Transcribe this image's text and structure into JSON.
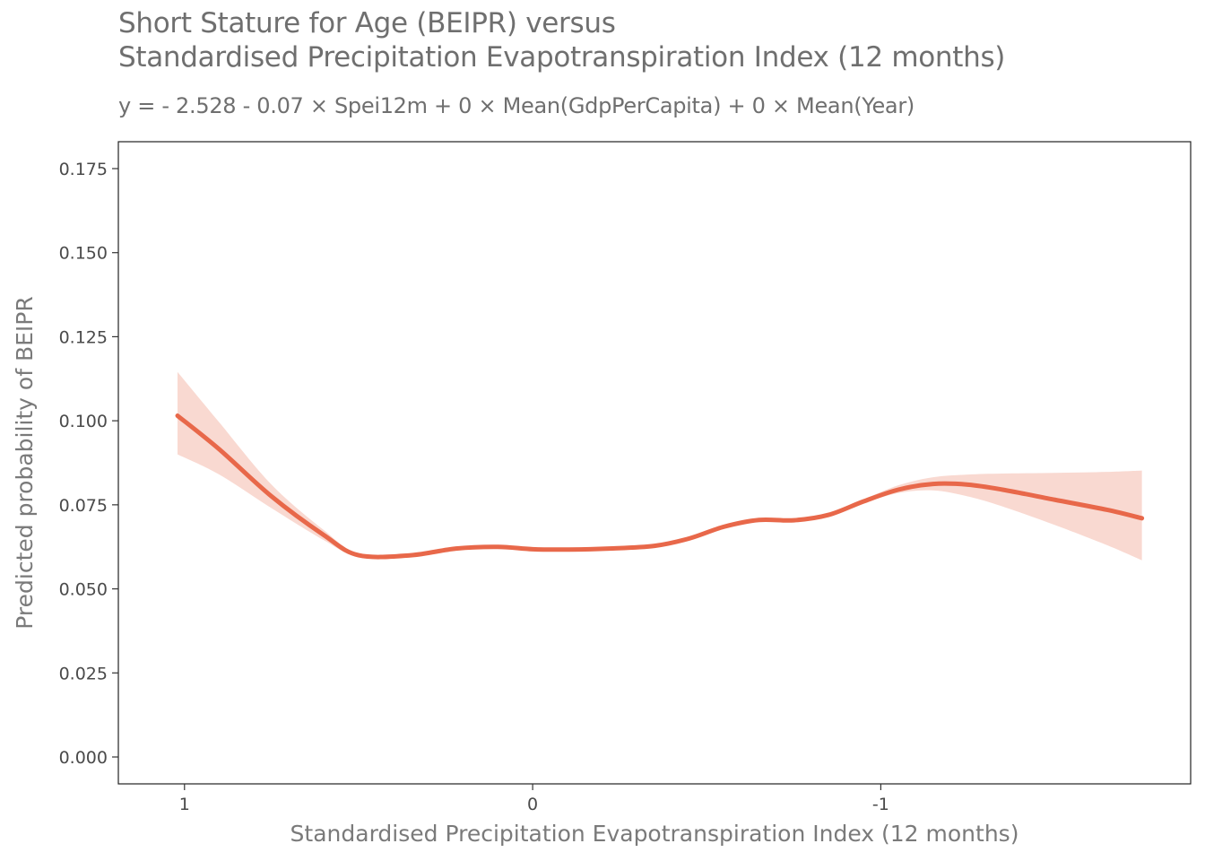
{
  "chart_data": {
    "type": "line",
    "title_lines": [
      "Short Stature for Age (BEIPR) versus",
      "Standardised Precipitation Evapotranspiration Index (12 months)"
    ],
    "subtitle": "y =  - 2.528 - 0.07 × Spei12m + 0 × Mean(GdpPerCapita) + 0 × Mean(Year)",
    "xlabel": "Standardised Precipitation Evapotranspiration Index (12 months)",
    "ylabel": "Predicted probability of BEIPR",
    "x_reversed": true,
    "xlim": [
      1.19,
      -1.89
    ],
    "ylim": [
      -0.008,
      0.183
    ],
    "x_ticks": [
      {
        "value": 1,
        "label": "1"
      },
      {
        "value": 0,
        "label": "0"
      },
      {
        "value": -1,
        "label": "-1"
      }
    ],
    "y_ticks": [
      {
        "value": 0.0,
        "label": "0.000"
      },
      {
        "value": 0.025,
        "label": "0.025"
      },
      {
        "value": 0.05,
        "label": "0.050"
      },
      {
        "value": 0.075,
        "label": "0.075"
      },
      {
        "value": 0.1,
        "label": "0.100"
      },
      {
        "value": 0.125,
        "label": "0.125"
      },
      {
        "value": 0.15,
        "label": "0.150"
      },
      {
        "value": 0.175,
        "label": "0.175"
      }
    ],
    "grid": false,
    "colors": {
      "line": "#e8684a",
      "ribbon": "#f9d9d1"
    },
    "series": [
      {
        "x": [
          1.02,
          0.9,
          0.75,
          0.6,
          0.5,
          0.35,
          0.22,
          0.1,
          0.0,
          -0.1,
          -0.22,
          -0.35,
          -0.45,
          -0.55,
          -0.65,
          -0.75,
          -0.85,
          -0.95,
          -1.05,
          -1.15,
          -1.25,
          -1.35,
          -1.5,
          -1.65,
          -1.75
        ],
        "y": [
          0.1015,
          0.0915,
          0.0775,
          0.066,
          0.06,
          0.06,
          0.062,
          0.0625,
          0.0618,
          0.0617,
          0.062,
          0.0628,
          0.065,
          0.0685,
          0.0705,
          0.0704,
          0.072,
          0.076,
          0.0795,
          0.0812,
          0.081,
          0.0795,
          0.0765,
          0.0735,
          0.071
        ],
        "lower": [
          0.09,
          0.084,
          0.074,
          0.0645,
          0.0595,
          0.0595,
          0.0615,
          0.062,
          0.0614,
          0.0613,
          0.0616,
          0.0624,
          0.0646,
          0.0681,
          0.0701,
          0.07,
          0.0716,
          0.0754,
          0.0785,
          0.0793,
          0.0775,
          0.0745,
          0.069,
          0.063,
          0.0585
        ],
        "upper": [
          0.1145,
          0.0995,
          0.081,
          0.0675,
          0.0605,
          0.0605,
          0.0625,
          0.063,
          0.0622,
          0.0621,
          0.0624,
          0.0632,
          0.0654,
          0.0689,
          0.0709,
          0.0708,
          0.0724,
          0.0766,
          0.0808,
          0.0832,
          0.084,
          0.0843,
          0.0845,
          0.0848,
          0.0852
        ]
      }
    ]
  }
}
